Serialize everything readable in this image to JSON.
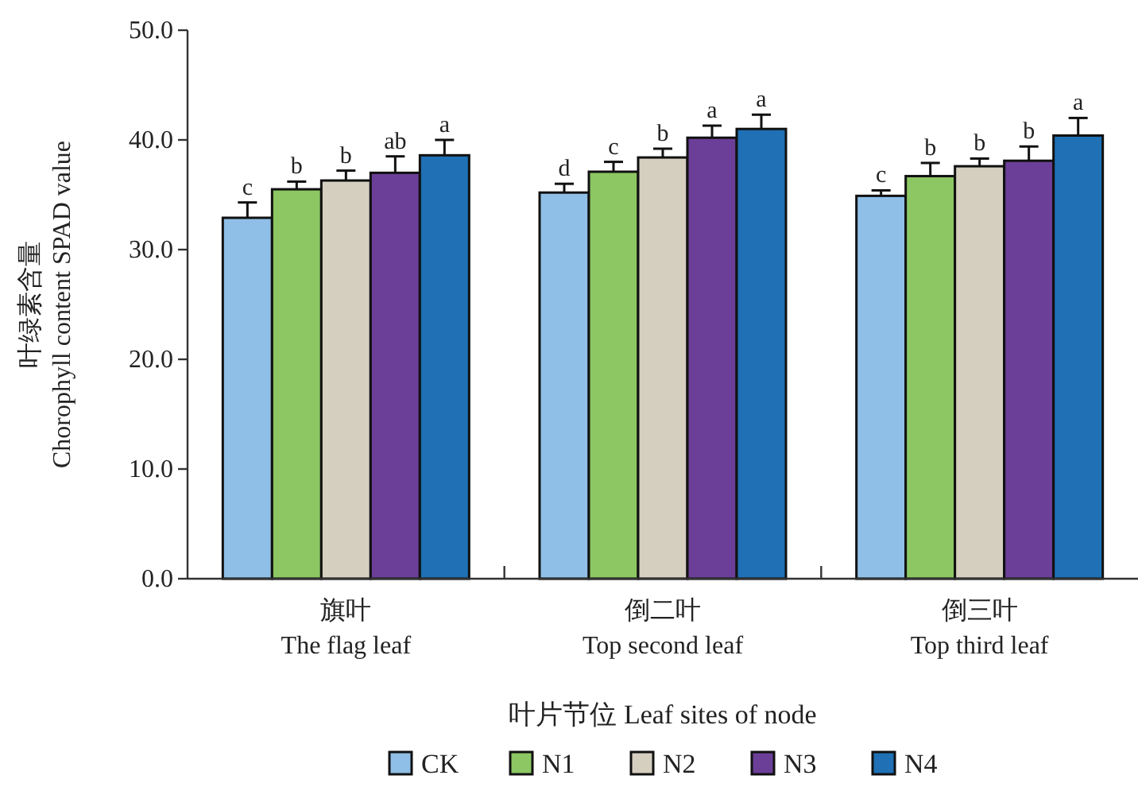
{
  "chart_data": {
    "type": "bar",
    "categories": [
      "旗叶\nThe flag leaf",
      "倒二叶\nTop second leaf",
      "倒三叶\nTop third leaf"
    ],
    "xlabel": "叶片节位 Leaf sites of node",
    "ylabel": "叶绿素含量\nChorophyll content SPAD value",
    "ylim": [
      0,
      50
    ],
    "yticks": [
      {
        "value": 0,
        "label": "0.0"
      },
      {
        "value": 10,
        "label": "10.0"
      },
      {
        "value": 20,
        "label": "20.0"
      },
      {
        "value": 30,
        "label": "30.0"
      },
      {
        "value": 40,
        "label": "40.0"
      },
      {
        "value": 50,
        "label": "50.0"
      }
    ],
    "grid": false,
    "legend": "bottom",
    "series": [
      {
        "name": "CK",
        "color": "#8fbfe6",
        "values": [
          32.9,
          35.2,
          34.9
        ],
        "errors": [
          1.4,
          0.8,
          0.5
        ],
        "value_labels": [
          "c",
          "d",
          "c"
        ]
      },
      {
        "name": "N1",
        "color": "#8cc763",
        "values": [
          35.5,
          37.1,
          36.7
        ],
        "errors": [
          0.7,
          0.9,
          1.2
        ],
        "value_labels": [
          "b",
          "c",
          "b"
        ]
      },
      {
        "name": "N2",
        "color": "#d5cfc0",
        "values": [
          36.3,
          38.4,
          37.6
        ],
        "errors": [
          0.9,
          0.8,
          0.7
        ],
        "value_labels": [
          "b",
          "b",
          "b"
        ]
      },
      {
        "name": "N3",
        "color": "#6b3f97",
        "values": [
          37.0,
          40.2,
          38.1
        ],
        "errors": [
          1.5,
          1.1,
          1.3
        ],
        "value_labels": [
          "ab",
          "a",
          "b"
        ]
      },
      {
        "name": "N4",
        "color": "#1f70b4",
        "values": [
          38.6,
          41.0,
          40.4
        ],
        "errors": [
          1.4,
          1.3,
          1.6
        ],
        "value_labels": [
          "a",
          "a",
          "a"
        ]
      }
    ]
  }
}
